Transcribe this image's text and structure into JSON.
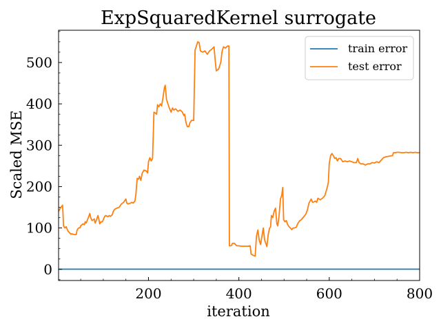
{
  "chart_data": {
    "type": "line",
    "title": "ExpSquaredKernel surrogate",
    "xlabel": "iteration",
    "ylabel": "Scaled MSE",
    "xlim": [
      1,
      800
    ],
    "ylim": [
      -27,
      578
    ],
    "xticks": [
      200,
      400,
      600,
      800
    ],
    "yticks": [
      0,
      100,
      200,
      300,
      400,
      500
    ],
    "grid": false,
    "legend_position": "top-right",
    "series": [
      {
        "name": "train error",
        "color": "#1f77b4",
        "points": [
          [
            1,
            0.5
          ],
          [
            800,
            0.5
          ]
        ]
      },
      {
        "name": "test error",
        "color": "#ff7f0e",
        "points": [
          [
            1,
            140
          ],
          [
            5,
            148
          ],
          [
            10,
            155
          ],
          [
            12,
            105
          ],
          [
            15,
            100
          ],
          [
            18,
            103
          ],
          [
            20,
            97
          ],
          [
            22,
            92
          ],
          [
            25,
            89
          ],
          [
            28,
            85
          ],
          [
            30,
            86
          ],
          [
            35,
            84
          ],
          [
            40,
            84
          ],
          [
            42,
            95
          ],
          [
            45,
            100
          ],
          [
            48,
            100
          ],
          [
            50,
            105
          ],
          [
            55,
            110
          ],
          [
            58,
            108
          ],
          [
            60,
            115
          ],
          [
            62,
            112
          ],
          [
            65,
            120
          ],
          [
            68,
            128
          ],
          [
            70,
            135
          ],
          [
            72,
            125
          ],
          [
            75,
            118
          ],
          [
            78,
            120
          ],
          [
            80,
            122
          ],
          [
            82,
            112
          ],
          [
            85,
            120
          ],
          [
            88,
            130
          ],
          [
            90,
            122
          ],
          [
            92,
            110
          ],
          [
            95,
            115
          ],
          [
            98,
            115
          ],
          [
            100,
            120
          ],
          [
            103,
            128
          ],
          [
            106,
            130
          ],
          [
            110,
            127
          ],
          [
            113,
            130
          ],
          [
            116,
            128
          ],
          [
            120,
            132
          ],
          [
            122,
            140
          ],
          [
            125,
            145
          ],
          [
            130,
            148
          ],
          [
            135,
            150
          ],
          [
            140,
            158
          ],
          [
            145,
            162
          ],
          [
            150,
            170
          ],
          [
            152,
            160
          ],
          [
            155,
            158
          ],
          [
            160,
            160
          ],
          [
            163,
            162
          ],
          [
            166,
            160
          ],
          [
            170,
            165
          ],
          [
            172,
            180
          ],
          [
            175,
            220
          ],
          [
            178,
            218
          ],
          [
            180,
            225
          ],
          [
            183,
            215
          ],
          [
            186,
            232
          ],
          [
            190,
            240
          ],
          [
            195,
            238
          ],
          [
            198,
            233
          ],
          [
            200,
            260
          ],
          [
            203,
            270
          ],
          [
            206,
            262
          ],
          [
            209,
            268
          ],
          [
            212,
            380
          ],
          [
            215,
            378
          ],
          [
            218,
            375
          ],
          [
            220,
            398
          ],
          [
            223,
            393
          ],
          [
            226,
            400
          ],
          [
            229,
            395
          ],
          [
            232,
            415
          ],
          [
            235,
            438
          ],
          [
            237,
            445
          ],
          [
            240,
            410
          ],
          [
            243,
            400
          ],
          [
            246,
            390
          ],
          [
            250,
            380
          ],
          [
            253,
            390
          ],
          [
            256,
            385
          ],
          [
            260,
            388
          ],
          [
            265,
            382
          ],
          [
            270,
            385
          ],
          [
            275,
            380
          ],
          [
            278,
            372
          ],
          [
            280,
            375
          ],
          [
            283,
            355
          ],
          [
            286,
            345
          ],
          [
            289,
            345
          ],
          [
            292,
            355
          ],
          [
            295,
            360
          ],
          [
            298,
            360
          ],
          [
            300,
            360
          ],
          [
            303,
            530
          ],
          [
            306,
            540
          ],
          [
            309,
            550
          ],
          [
            312,
            548
          ],
          [
            315,
            528
          ],
          [
            320,
            525
          ],
          [
            325,
            528
          ],
          [
            330,
            520
          ],
          [
            335,
            528
          ],
          [
            340,
            532
          ],
          [
            345,
            538
          ],
          [
            348,
            500
          ],
          [
            350,
            480
          ],
          [
            355,
            484
          ],
          [
            360,
            500
          ],
          [
            363,
            528
          ],
          [
            366,
            538
          ],
          [
            370,
            535
          ],
          [
            375,
            540
          ],
          [
            378,
            540
          ],
          [
            379,
            57
          ],
          [
            383,
            57
          ],
          [
            386,
            63
          ],
          [
            390,
            63
          ],
          [
            395,
            57
          ],
          [
            400,
            57
          ],
          [
            405,
            56
          ],
          [
            415,
            56
          ],
          [
            420,
            56
          ],
          [
            425,
            57
          ],
          [
            427,
            37
          ],
          [
            430,
            35
          ],
          [
            433,
            33
          ],
          [
            436,
            32
          ],
          [
            439,
            80
          ],
          [
            442,
            95
          ],
          [
            445,
            70
          ],
          [
            448,
            60
          ],
          [
            451,
            80
          ],
          [
            454,
            100
          ],
          [
            457,
            70
          ],
          [
            460,
            62
          ],
          [
            462,
            55
          ],
          [
            465,
            85
          ],
          [
            468,
            100
          ],
          [
            470,
            102
          ],
          [
            472,
            130
          ],
          [
            475,
            125
          ],
          [
            478,
            140
          ],
          [
            481,
            148
          ],
          [
            484,
            110
          ],
          [
            486,
            105
          ],
          [
            489,
            130
          ],
          [
            492,
            170
          ],
          [
            495,
            180
          ],
          [
            497,
            198
          ],
          [
            499,
            120
          ],
          [
            502,
            115
          ],
          [
            505,
            118
          ],
          [
            508,
            108
          ],
          [
            511,
            103
          ],
          [
            514,
            100
          ],
          [
            517,
            96
          ],
          [
            520,
            100
          ],
          [
            523,
            100
          ],
          [
            527,
            102
          ],
          [
            530,
            110
          ],
          [
            535,
            118
          ],
          [
            538,
            120
          ],
          [
            542,
            125
          ],
          [
            548,
            133
          ],
          [
            552,
            145
          ],
          [
            555,
            160
          ],
          [
            560,
            170
          ],
          [
            563,
            162
          ],
          [
            566,
            163
          ],
          [
            569,
            165
          ],
          [
            572,
            162
          ],
          [
            575,
            172
          ],
          [
            580,
            168
          ],
          [
            585,
            172
          ],
          [
            590,
            178
          ],
          [
            595,
            196
          ],
          [
            598,
            210
          ],
          [
            600,
            255
          ],
          [
            603,
            275
          ],
          [
            606,
            280
          ],
          [
            609,
            275
          ],
          [
            612,
            268
          ],
          [
            615,
            270
          ],
          [
            618,
            262
          ],
          [
            621,
            268
          ],
          [
            625,
            268
          ],
          [
            630,
            260
          ],
          [
            635,
            262
          ],
          [
            640,
            260
          ],
          [
            645,
            262
          ],
          [
            650,
            260
          ],
          [
            655,
            258
          ],
          [
            660,
            258
          ],
          [
            663,
            268
          ],
          [
            666,
            258
          ],
          [
            670,
            255
          ],
          [
            675,
            255
          ],
          [
            680,
            252
          ],
          [
            685,
            255
          ],
          [
            690,
            255
          ],
          [
            695,
            258
          ],
          [
            700,
            257
          ],
          [
            705,
            260
          ],
          [
            710,
            258
          ],
          [
            715,
            264
          ],
          [
            720,
            270
          ],
          [
            725,
            272
          ],
          [
            730,
            273
          ],
          [
            735,
            274
          ],
          [
            740,
            275
          ],
          [
            742,
            282
          ],
          [
            745,
            282
          ],
          [
            750,
            283
          ],
          [
            755,
            283
          ],
          [
            760,
            282
          ],
          [
            765,
            282
          ],
          [
            770,
            283
          ],
          [
            775,
            282
          ],
          [
            780,
            283
          ],
          [
            785,
            282
          ],
          [
            790,
            283
          ],
          [
            795,
            282
          ],
          [
            800,
            282
          ]
        ]
      }
    ]
  }
}
